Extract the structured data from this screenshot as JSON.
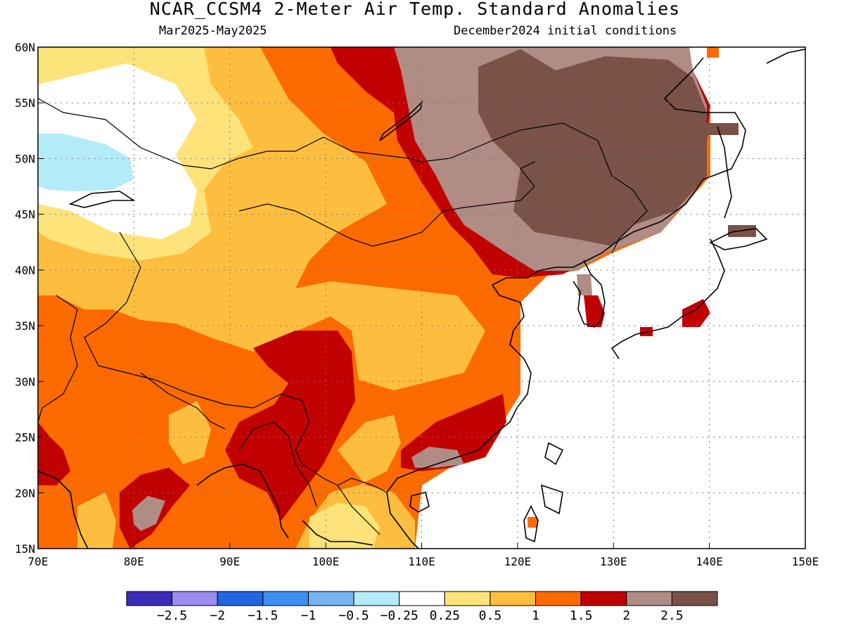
{
  "header": {
    "title": "NCAR_CCSM4 2-Meter Air Temp. Standard Anomalies",
    "period": "Mar2025-May2025",
    "init": "December2024 initial conditions"
  },
  "map": {
    "lon_range": [
      70,
      150
    ],
    "lat_range": [
      15,
      60
    ],
    "lon_ticks": [
      "70E",
      "80E",
      "90E",
      "100E",
      "110E",
      "120E",
      "130E",
      "140E",
      "150E"
    ],
    "lat_ticks": [
      "60N",
      "55N",
      "50N",
      "45N",
      "40N",
      "35N",
      "30N",
      "25N",
      "20N",
      "15N"
    ],
    "grid": "dotted"
  },
  "colorbar": {
    "colors": [
      "#3a2bb5",
      "#9a8cf0",
      "#2266e0",
      "#3c8ff0",
      "#76b2f0",
      "#b3ecf8",
      "#ffffff",
      "#fde37a",
      "#fdbe3f",
      "#fd6a00",
      "#c10000",
      "#b08c85",
      "#7a5248"
    ],
    "labels": [
      "-2.5",
      "-2",
      "-1.5",
      "-1",
      "-0.5",
      "-0.25",
      "0.25",
      "0.5",
      "1",
      "1.5",
      "2",
      "2.5"
    ]
  }
}
